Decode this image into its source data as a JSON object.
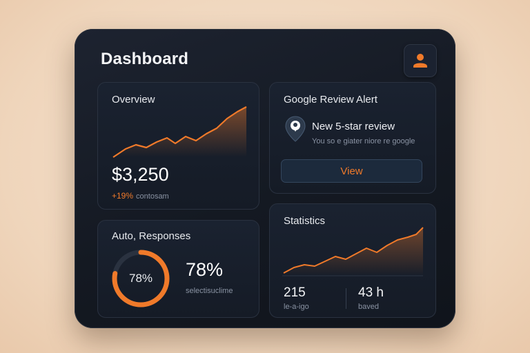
{
  "header": {
    "title": "Dashboard",
    "avatar_icon": "user-icon"
  },
  "accent_color": "#f07a2a",
  "overview": {
    "title": "Overview",
    "value": "$3,250",
    "change": "+19%",
    "change_note": "contosam"
  },
  "review_alert": {
    "title": "Google Review Alert",
    "icon": "map-pin-icon",
    "headline": "New 5-star review",
    "detail": "You so e giater niore re google",
    "view_label": "View"
  },
  "auto_responses": {
    "title": "Auto, Responses",
    "ring_label": "78%",
    "ring_progress": 0.78,
    "value": "78%",
    "caption": "selectisuclime"
  },
  "statistics": {
    "title": "Statistics",
    "stats": [
      {
        "value": "215",
        "label": "le-a-igo"
      },
      {
        "value": "43 h",
        "label": "baved"
      }
    ]
  }
}
